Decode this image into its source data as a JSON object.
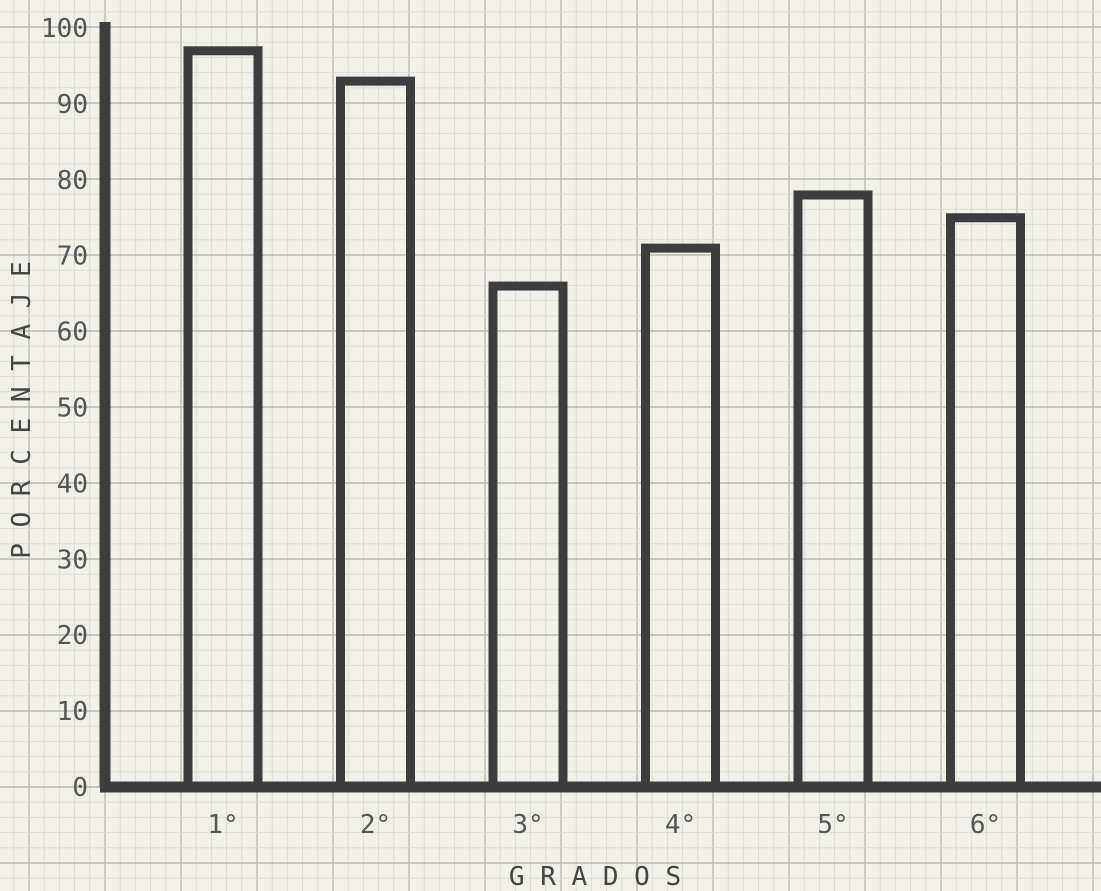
{
  "chart_data": {
    "type": "bar",
    "categories": [
      "1°",
      "2°",
      "3°",
      "4°",
      "5°",
      "6°"
    ],
    "values": [
      97,
      93,
      66,
      71,
      78,
      75
    ],
    "xlabel": "G R A D O S",
    "ylabel": "P O R C E N T A J E",
    "ylim": [
      0,
      100
    ],
    "yticks": [
      "0",
      "10",
      "20",
      "30",
      "40",
      "50",
      "60",
      "70",
      "80",
      "90",
      "100"
    ],
    "grid": true,
    "legend": "none",
    "colors": {
      "paper": "#f1f1ea",
      "grid_minor": "#d9d9d0",
      "grid_major": "#b9b9b0",
      "ink": "#3d3d3d"
    }
  }
}
